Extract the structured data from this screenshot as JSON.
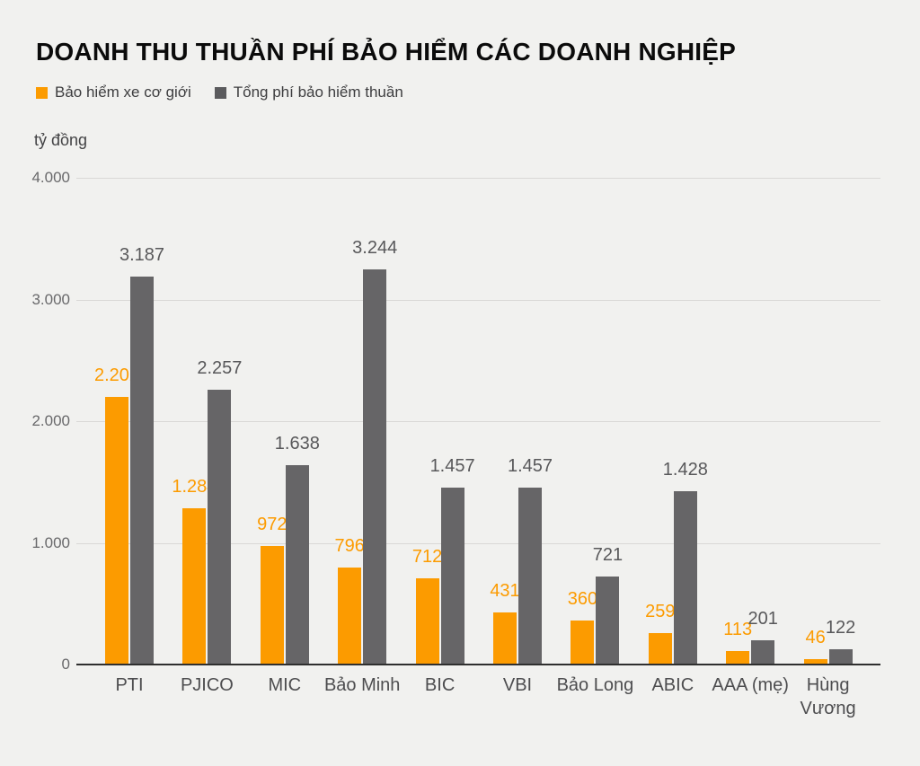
{
  "title": "DOANH THU THUẦN PHÍ BẢO HIỂM CÁC DOANH NGHIỆP",
  "unit_label": "tỷ đồng",
  "legend": [
    {
      "label": "Bảo hiểm xe cơ giới",
      "color": "#fc9b00"
    },
    {
      "label": "Tổng phí bảo hiểm thuần",
      "color": "#5b5b5d"
    }
  ],
  "chart_data": {
    "type": "bar",
    "title": "DOANH THU THUẦN PHÍ BẢO HIỂM CÁC DOANH NGHIỆP",
    "ylabel": "tỷ đồng",
    "ylim": [
      0,
      4000
    ],
    "ytick_labels": [
      "4.000",
      "3.000",
      "2.000",
      "1.000",
      "0"
    ],
    "grid": true,
    "legend_position": "top-left",
    "categories": [
      "PTI",
      "PJICO",
      "MIC",
      "Bảo Minh",
      "BIC",
      "VBI",
      "Bảo Long",
      "ABIC",
      "AAA (mẹ)",
      "Hùng Vương"
    ],
    "series": [
      {
        "name": "Bảo hiểm xe cơ giới",
        "color": "#fc9b00",
        "values": [
          2202,
          1284,
          972,
          796,
          712,
          431,
          360,
          259,
          113,
          46
        ],
        "labels": [
          "2.202",
          "1.284",
          "972",
          "796",
          "712",
          "431",
          "360",
          "259",
          "113",
          "46"
        ]
      },
      {
        "name": "Tổng phí bảo hiểm thuần",
        "color": "#666567",
        "values": [
          3187,
          2257,
          1638,
          3244,
          1457,
          1457,
          721,
          1428,
          201,
          122
        ],
        "labels": [
          "3.187",
          "2.257",
          "1.638",
          "3.244",
          "1.457",
          "1.457",
          "721",
          "1.428",
          "201",
          "122"
        ]
      }
    ]
  }
}
